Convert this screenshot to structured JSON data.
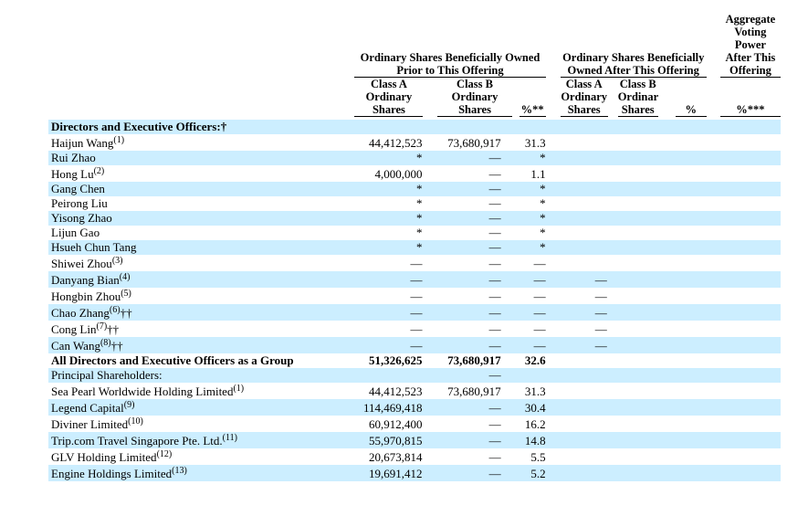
{
  "table": {
    "colors": {
      "stripe": "#cceeff",
      "rule": "#000000",
      "text": "#000000"
    },
    "group_headers": {
      "prior": "Ordinary Shares Beneficially Owned\nPrior to This Offering",
      "after": "Ordinary Shares Beneficially\nOwned After This Offering",
      "voting_power": "Aggregate\nVoting\nPower\nAfter This\nOffering"
    },
    "column_headers": [
      "Class A\nOrdinary\nShares",
      "Class B\nOrdinary\nShares",
      "%**",
      "Class A\nOrdinary\nShares",
      "Class B\nOrdinary\nShares",
      "%",
      "%***"
    ],
    "rows": [
      {
        "label": "Directors and Executive Officers:",
        "suffix": "†",
        "bold": true,
        "values": [
          "",
          "",
          "",
          "",
          "",
          "",
          ""
        ]
      },
      {
        "label": "Haijun Wang",
        "sup": "(1)",
        "values": [
          "44,412,523",
          "73,680,917",
          "31.3",
          "",
          "",
          "",
          ""
        ]
      },
      {
        "label": "Rui Zhao",
        "values": [
          "*",
          "—",
          "*",
          "",
          "",
          "",
          ""
        ]
      },
      {
        "label": "Hong Lu",
        "sup": "(2)",
        "values": [
          "4,000,000",
          "—",
          "1.1",
          "",
          "",
          "",
          ""
        ]
      },
      {
        "label": "Gang Chen",
        "values": [
          "*",
          "—",
          "*",
          "",
          "",
          "",
          ""
        ]
      },
      {
        "label": "Peirong Liu",
        "values": [
          "*",
          "—",
          "*",
          "",
          "",
          "",
          ""
        ]
      },
      {
        "label": "Yisong Zhao",
        "values": [
          "*",
          "—",
          "*",
          "",
          "",
          "",
          ""
        ]
      },
      {
        "label": "Lijun Gao",
        "values": [
          "*",
          "—",
          "*",
          "",
          "",
          "",
          ""
        ]
      },
      {
        "label": "Hsueh Chun Tang",
        "values": [
          "*",
          "—",
          "*",
          "",
          "",
          "",
          ""
        ]
      },
      {
        "label": "Shiwei Zhou",
        "sup": "(3)",
        "values": [
          "—",
          "—",
          "—",
          "",
          "",
          "",
          ""
        ]
      },
      {
        "label": "Danyang Bian",
        "sup": "(4)",
        "values": [
          "—",
          "—",
          "—",
          "—",
          "",
          "",
          ""
        ]
      },
      {
        "label": "Hongbin Zhou",
        "sup": "(5)",
        "values": [
          "—",
          "—",
          "—",
          "—",
          "",
          "",
          ""
        ]
      },
      {
        "label": "Chao Zhang",
        "sup": "(6)",
        "suffix": "††",
        "values": [
          "—",
          "—",
          "—",
          "—",
          "",
          "",
          ""
        ]
      },
      {
        "label": "Cong Lin",
        "sup": "(7)",
        "suffix": "††",
        "values": [
          "—",
          "—",
          "—",
          "—",
          "",
          "",
          ""
        ]
      },
      {
        "label": "Can Wang",
        "sup": "(8)",
        "suffix": "††",
        "values": [
          "—",
          "—",
          "—",
          "—",
          "",
          "",
          ""
        ]
      },
      {
        "label": "All Directors and Executive Officers as a Group",
        "bold": true,
        "values": [
          "51,326,625",
          "73,680,917",
          "32.6",
          "",
          "",
          "",
          ""
        ]
      },
      {
        "label": "Principal Shareholders:",
        "values": [
          "",
          "—",
          "",
          "",
          "",
          "",
          ""
        ]
      },
      {
        "label": "Sea Pearl Worldwide Holding Limited",
        "sup": "(1)",
        "values": [
          "44,412,523",
          "73,680,917",
          "31.3",
          "",
          "",
          "",
          ""
        ]
      },
      {
        "label": "Legend Capital",
        "sup": "(9)",
        "values": [
          "114,469,418",
          "—",
          "30.4",
          "",
          "",
          "",
          ""
        ]
      },
      {
        "label": "Diviner Limited",
        "sup": "(10)",
        "values": [
          "60,912,400",
          "—",
          "16.2",
          "",
          "",
          "",
          ""
        ]
      },
      {
        "label": "Trip.com Travel Singapore Pte. Ltd.",
        "sup": "(11)",
        "values": [
          "55,970,815",
          "—",
          "14.8",
          "",
          "",
          "",
          ""
        ]
      },
      {
        "label": "GLV Holding Limited",
        "sup": "(12)",
        "values": [
          "20,673,814",
          "—",
          "5.5",
          "",
          "",
          "",
          ""
        ]
      },
      {
        "label": "Engine Holdings Limited",
        "sup": "(13)",
        "values": [
          "19,691,412",
          "—",
          "5.2",
          "",
          "",
          "",
          ""
        ]
      }
    ]
  }
}
